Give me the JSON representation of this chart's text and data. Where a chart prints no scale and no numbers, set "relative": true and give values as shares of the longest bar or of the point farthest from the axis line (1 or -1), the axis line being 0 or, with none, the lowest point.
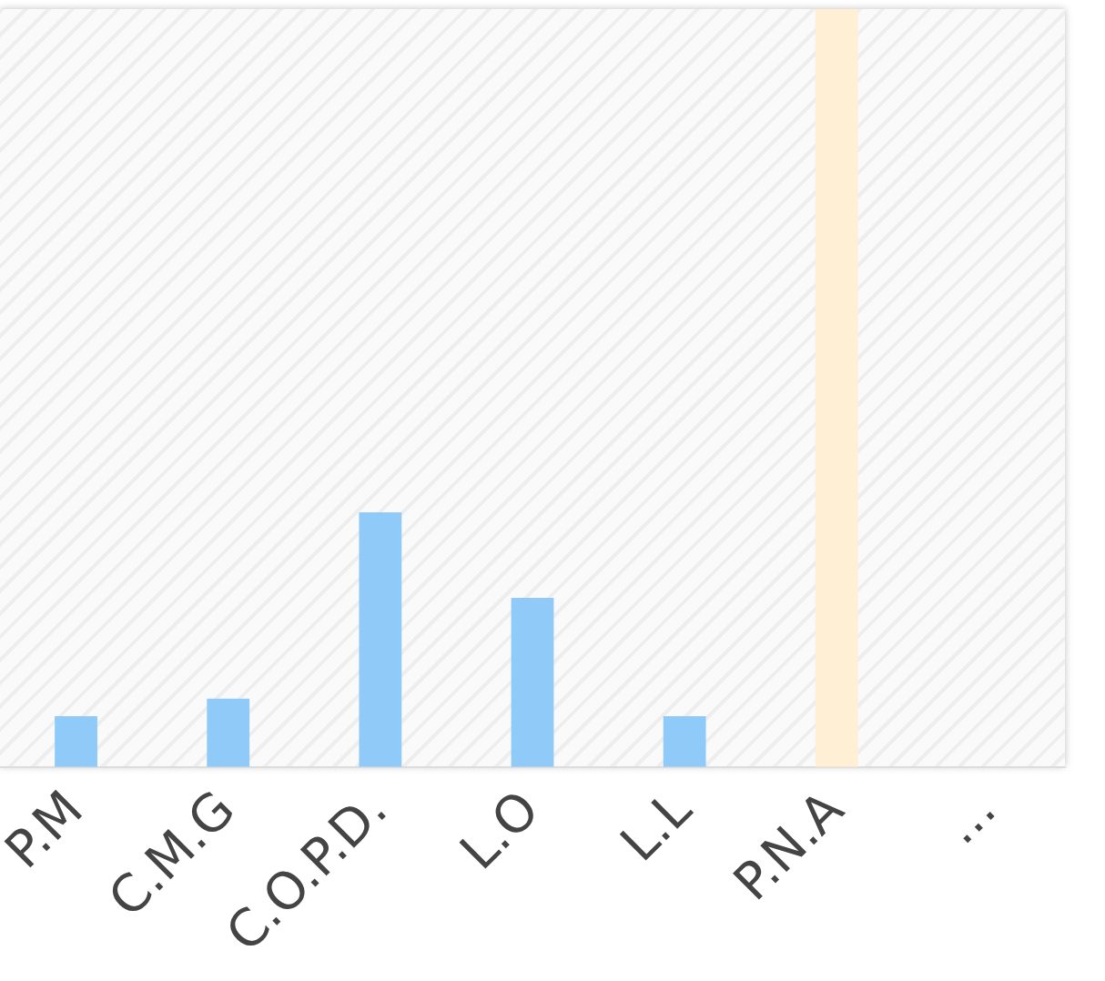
{
  "chart_data": {
    "type": "bar",
    "relative": true,
    "categories": [
      "P.M",
      "C.M.G",
      "C.O.P.D.",
      "L.O",
      "L.L",
      "P.N.A",
      "..."
    ],
    "values": [
      0.067,
      0.09,
      0.336,
      0.223,
      0.067,
      1,
      null
    ],
    "colors": [
      "#90caf9",
      "#90caf9",
      "#90caf9",
      "#90caf9",
      "#90caf9",
      "#ffefd5",
      "#90caf9"
    ],
    "grid": false,
    "legend": false
  }
}
